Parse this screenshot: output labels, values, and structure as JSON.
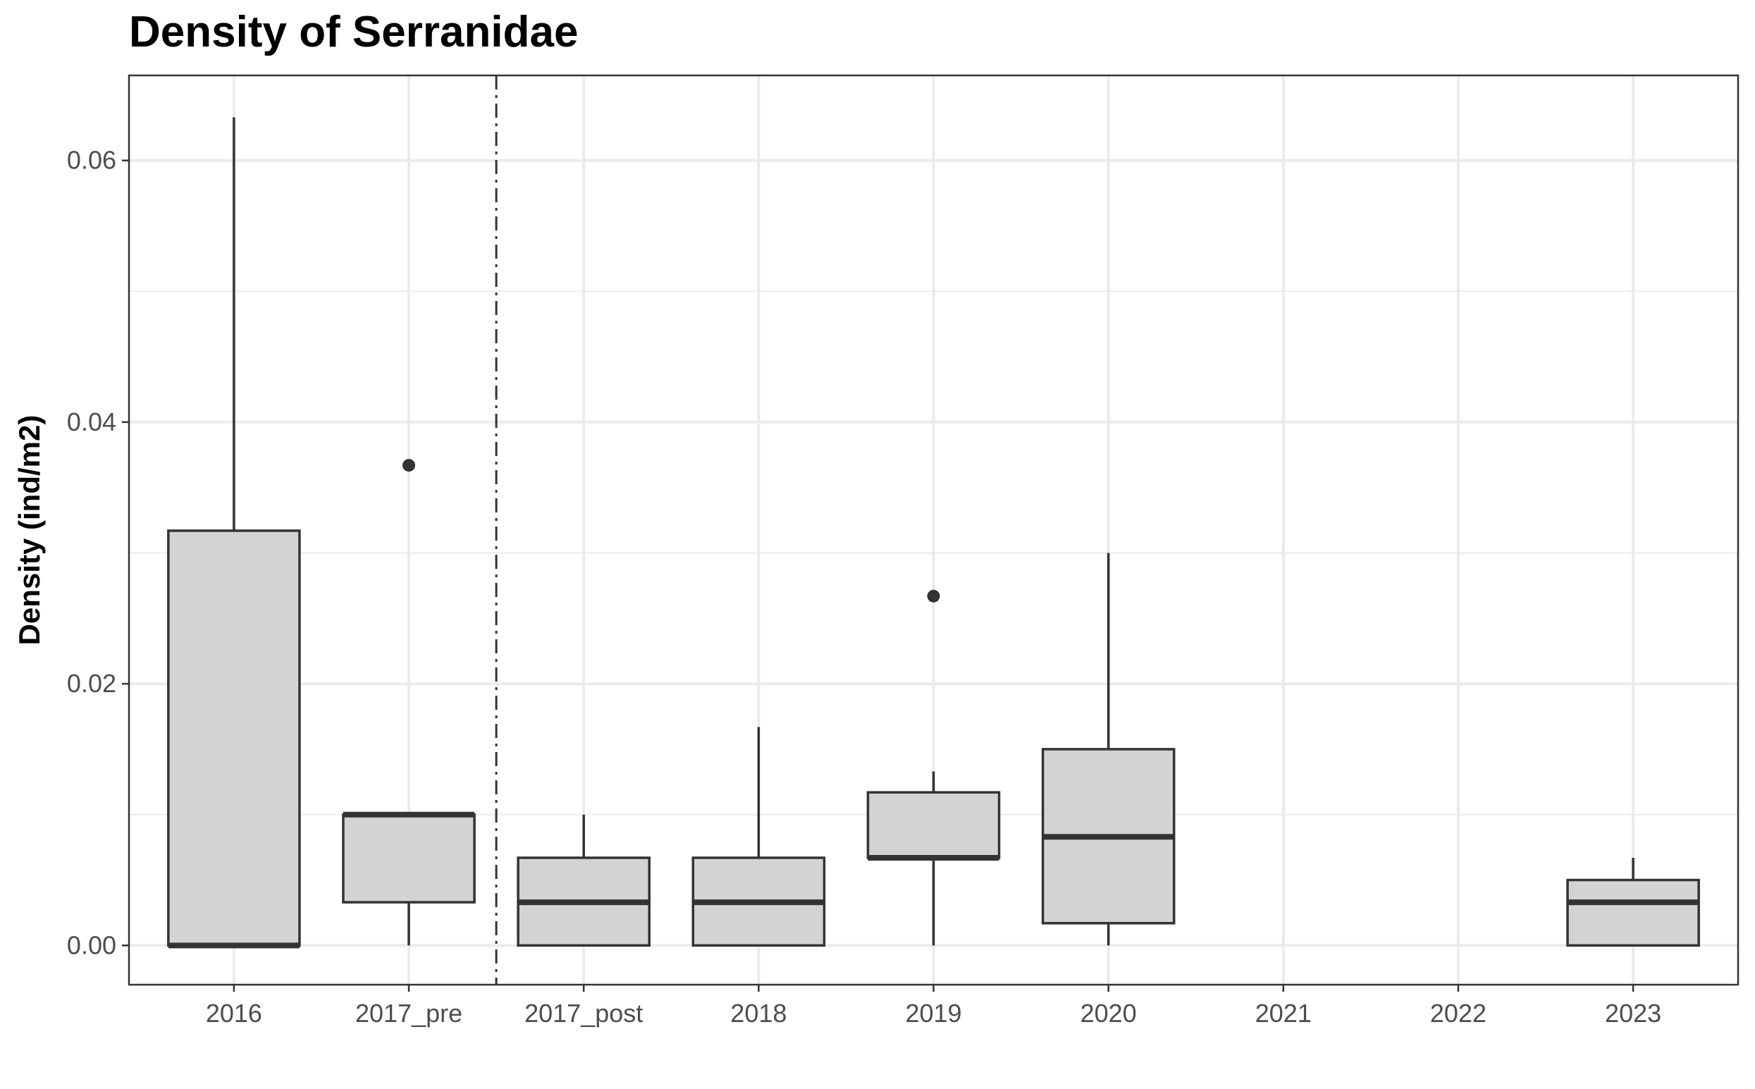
{
  "chart_data": {
    "type": "boxplot",
    "title": "Density of Serranidae",
    "xlabel": "",
    "ylabel": "Density (ind/m2)",
    "ylim": [
      -0.003,
      0.0665
    ],
    "yticks": [
      0.0,
      0.02,
      0.04,
      0.06
    ],
    "ytick_labels": [
      "0.00",
      "0.02",
      "0.04",
      "0.06"
    ],
    "grid": true,
    "categories": [
      "2016",
      "2017_pre",
      "2017_post",
      "2018",
      "2019",
      "2020",
      "2021",
      "2022",
      "2023"
    ],
    "boxes": [
      {
        "category": "2016",
        "whisker_low": 0.0,
        "q1": 0.0,
        "median": 0.0,
        "q3": 0.0317,
        "whisker_high": 0.0633,
        "outliers": []
      },
      {
        "category": "2017_pre",
        "whisker_low": 0.0,
        "q1": 0.0033,
        "median": 0.01,
        "q3": 0.01,
        "whisker_high": 0.01,
        "outliers": [
          0.0367
        ]
      },
      {
        "category": "2017_post",
        "whisker_low": 0.0,
        "q1": 0.0,
        "median": 0.0033,
        "q3": 0.0067,
        "whisker_high": 0.01,
        "outliers": []
      },
      {
        "category": "2018",
        "whisker_low": 0.0,
        "q1": 0.0,
        "median": 0.0033,
        "q3": 0.0067,
        "whisker_high": 0.0167,
        "outliers": []
      },
      {
        "category": "2019",
        "whisker_low": 0.0,
        "q1": 0.0067,
        "median": 0.0067,
        "q3": 0.0117,
        "whisker_high": 0.0133,
        "outliers": [
          0.0267
        ]
      },
      {
        "category": "2020",
        "whisker_low": 0.0,
        "q1": 0.0017,
        "median": 0.0083,
        "q3": 0.015,
        "whisker_high": 0.03,
        "outliers": []
      },
      {
        "category": "2023",
        "whisker_low": 0.0,
        "q1": 0.0,
        "median": 0.0033,
        "q3": 0.005,
        "whisker_high": 0.0067,
        "outliers": []
      }
    ],
    "reference_line": {
      "between": [
        "2017_pre",
        "2017_post"
      ],
      "style": "dashdot"
    },
    "colors": {
      "box_fill": "#d3d3d3",
      "box_stroke": "#333333",
      "grid": "#ebebeb",
      "panel_border": "#333333",
      "reference_line": "#333333"
    }
  }
}
